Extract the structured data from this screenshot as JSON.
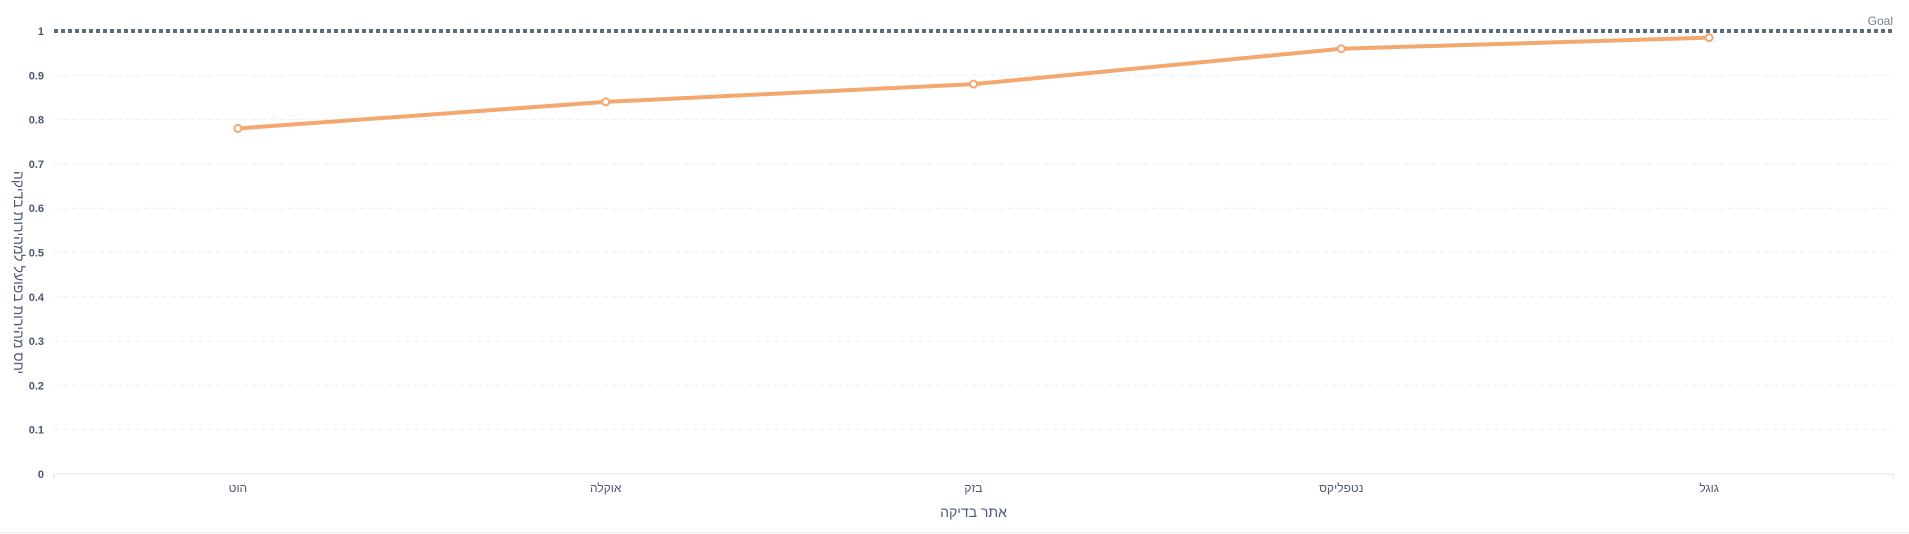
{
  "chart_data": {
    "type": "line",
    "categories": [
      "הוט",
      "אוקלה",
      "בזק",
      "נטפליקס",
      "גוגל"
    ],
    "values": [
      0.78,
      0.84,
      0.88,
      0.96,
      0.985
    ],
    "xlabel": "אתר בדיקה",
    "ylabel": "יחס מהירות בפועל למהירות בדיקה",
    "ylim": [
      0,
      1
    ],
    "yticks": [
      "0",
      "0.1",
      "0.2",
      "0.3",
      "0.4",
      "0.5",
      "0.6",
      "0.7",
      "0.8",
      "0.9",
      "1"
    ],
    "goal": {
      "value": 1,
      "label": "Goal"
    },
    "grid": true,
    "colors": {
      "line": "#f2a86f",
      "goal": "#5e6b76",
      "grid": "#eceff2",
      "text": "#4c5773"
    }
  }
}
